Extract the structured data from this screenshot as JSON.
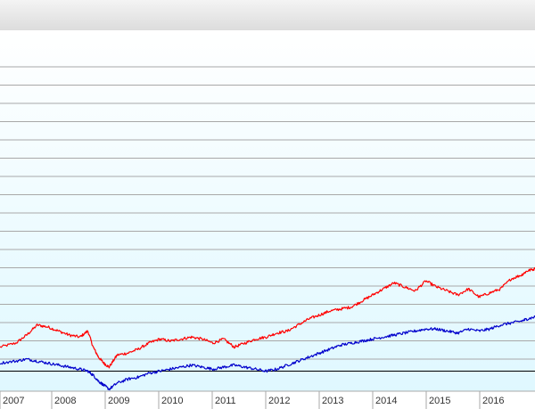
{
  "colors": {
    "header_top": "#f4f4f4",
    "header_bottom": "#dcdcdc",
    "plot_top": "#ffffff",
    "plot_bottom": "#dff8ff",
    "grid": "#a8a8a8",
    "baseline": "#000000",
    "series_red": "#ff0000",
    "series_blue": "#0000cc"
  },
  "chart_data": {
    "type": "line",
    "grid": true,
    "legend": "none",
    "x_ticks": [
      "2007",
      "2008",
      "2009",
      "2010",
      "2011",
      "2012",
      "2013",
      "2014",
      "2015",
      "2016"
    ],
    "xlim": [
      2006.9,
      2016.95
    ],
    "ylim": [
      -1,
      17
    ],
    "baseline_y": 0,
    "series": [
      {
        "color": "#ff0000",
        "x": [
          2006.9,
          2007.2,
          2007.4,
          2007.6,
          2007.8,
          2008.0,
          2008.2,
          2008.4,
          2008.55,
          2008.65,
          2008.75,
          2008.85,
          2008.95,
          2009.1,
          2009.3,
          2009.5,
          2009.7,
          2009.9,
          2010.1,
          2010.3,
          2010.5,
          2010.7,
          2010.9,
          2011.1,
          2011.3,
          2011.5,
          2011.7,
          2011.9,
          2012.1,
          2012.3,
          2012.5,
          2012.7,
          2012.9,
          2013.1,
          2013.3,
          2013.5,
          2013.7,
          2013.9,
          2014.1,
          2014.3,
          2014.5,
          2014.7,
          2014.9,
          2015.1,
          2015.3,
          2015.5,
          2015.7,
          2015.9,
          2016.1,
          2016.3,
          2016.5,
          2016.7,
          2016.8,
          2016.95
        ],
        "values": [
          1.2,
          1.4,
          1.8,
          2.3,
          2.2,
          2.0,
          1.8,
          1.7,
          2.0,
          1.2,
          0.7,
          0.4,
          0.2,
          0.8,
          0.9,
          1.1,
          1.4,
          1.6,
          1.5,
          1.6,
          1.7,
          1.6,
          1.4,
          1.6,
          1.2,
          1.4,
          1.6,
          1.7,
          1.9,
          2.0,
          2.3,
          2.6,
          2.8,
          3.0,
          3.1,
          3.2,
          3.5,
          3.8,
          4.1,
          4.4,
          4.2,
          4.0,
          4.5,
          4.2,
          4.0,
          3.8,
          4.1,
          3.7,
          3.9,
          4.1,
          4.6,
          4.8,
          5.0,
          5.1
        ]
      },
      {
        "color": "#0000cc",
        "x": [
          2006.9,
          2007.2,
          2007.4,
          2007.6,
          2007.8,
          2008.0,
          2008.2,
          2008.4,
          2008.55,
          2008.65,
          2008.75,
          2008.85,
          2008.95,
          2009.1,
          2009.3,
          2009.5,
          2009.7,
          2009.9,
          2010.1,
          2010.3,
          2010.5,
          2010.7,
          2010.9,
          2011.1,
          2011.3,
          2011.5,
          2011.7,
          2011.9,
          2012.1,
          2012.3,
          2012.5,
          2012.7,
          2012.9,
          2013.1,
          2013.3,
          2013.5,
          2013.7,
          2013.9,
          2014.1,
          2014.3,
          2014.5,
          2014.7,
          2014.9,
          2015.1,
          2015.3,
          2015.5,
          2015.7,
          2015.9,
          2016.1,
          2016.3,
          2016.5,
          2016.7,
          2016.8,
          2016.95
        ],
        "values": [
          0.4,
          0.5,
          0.6,
          0.5,
          0.4,
          0.3,
          0.2,
          0.1,
          0.0,
          -0.2,
          -0.5,
          -0.7,
          -0.9,
          -0.6,
          -0.4,
          -0.3,
          -0.1,
          0.0,
          0.1,
          0.2,
          0.3,
          0.2,
          0.1,
          0.2,
          0.3,
          0.2,
          0.1,
          0.0,
          0.1,
          0.3,
          0.5,
          0.7,
          0.9,
          1.1,
          1.3,
          1.4,
          1.5,
          1.6,
          1.7,
          1.8,
          1.9,
          2.0,
          2.1,
          2.1,
          2.0,
          1.9,
          2.1,
          2.0,
          2.1,
          2.3,
          2.4,
          2.5,
          2.6,
          2.7
        ]
      }
    ]
  }
}
